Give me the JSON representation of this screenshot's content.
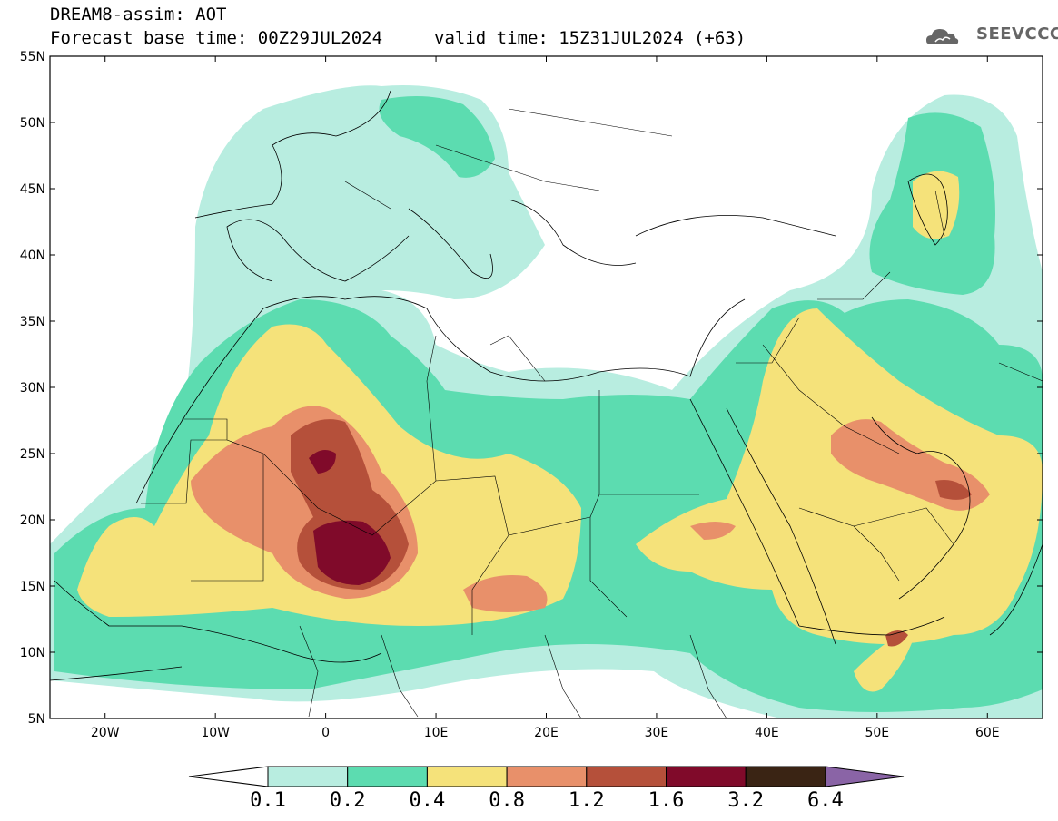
{
  "header": {
    "title": "DREAM8-assim: AOT",
    "base_time": "Forecast base time: 00Z29JUL2024",
    "valid_time": "valid time: 15Z31JUL2024 (+63)",
    "logo_text": "SEEVCCC"
  },
  "map": {
    "lon_range": [
      -25,
      65
    ],
    "lat_range": [
      5,
      55
    ],
    "lat_ticks": [
      "5N",
      "10N",
      "15N",
      "20N",
      "25N",
      "30N",
      "35N",
      "40N",
      "45N",
      "50N",
      "55N"
    ],
    "lon_ticks": [
      "20W",
      "10W",
      "0",
      "10E",
      "20E",
      "30E",
      "40E",
      "50E",
      "60E"
    ],
    "colors": {
      "0.1": "#b8ede0",
      "0.2": "#5cdcb0",
      "0.4": "#f5e27a",
      "0.8": "#e8906a",
      "1.2": "#b5503a",
      "1.6": "#800a2a",
      "3.2": "#3a2414",
      "6.4": "#8a64a6"
    }
  },
  "colorbar": {
    "labels": [
      "0.1",
      "0.2",
      "0.4",
      "0.8",
      "1.2",
      "1.6",
      "3.2",
      "6.4"
    ],
    "colors": [
      "#b8ede0",
      "#5cdcb0",
      "#f5e27a",
      "#e8906a",
      "#b5503a",
      "#800a2a",
      "#3a2414"
    ],
    "extend_low": "#ffffff",
    "extend_high": "#8a64a6"
  }
}
